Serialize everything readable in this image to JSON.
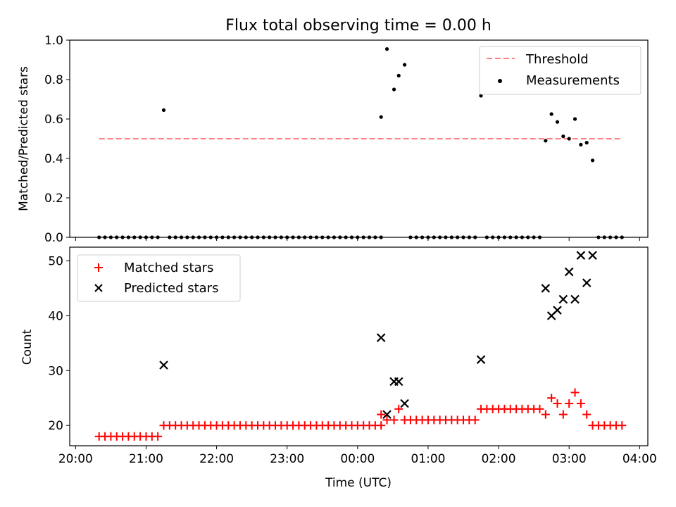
{
  "title": "Flux total observing time = 0.00 h",
  "x_axis": {
    "label": "Time (UTC)",
    "ticks": [
      "20:00",
      "21:00",
      "22:00",
      "23:00",
      "00:00",
      "01:00",
      "02:00",
      "03:00",
      "04:00"
    ]
  },
  "chart_data": [
    {
      "type": "scatter",
      "ylabel": "Matched/Predicted stars",
      "ylim": [
        0,
        1.0
      ],
      "yticks": [
        "0.0",
        "0.2",
        "0.4",
        "0.6",
        "0.8",
        "1.0"
      ],
      "xlim_minutes_from_20h": [
        -5,
        487
      ],
      "legend": {
        "placement": "top-right",
        "entries": [
          "Threshold",
          "Measurements"
        ]
      },
      "threshold": {
        "name": "Threshold",
        "value": 0.5,
        "x_start": "20:20",
        "x_end": "03:45",
        "color": "#ff8080",
        "style": "dashed"
      },
      "series": [
        {
          "name": "Measurements",
          "color": "#000000",
          "points": [
            [
              "20:20",
              0.0
            ],
            [
              "20:25",
              0.0
            ],
            [
              "20:30",
              0.0
            ],
            [
              "20:35",
              0.0
            ],
            [
              "20:40",
              0.0
            ],
            [
              "20:45",
              0.0
            ],
            [
              "20:50",
              0.0
            ],
            [
              "20:55",
              0.0
            ],
            [
              "21:00",
              0.0
            ],
            [
              "21:05",
              0.0
            ],
            [
              "21:10",
              0.0
            ],
            [
              "21:15",
              0.645
            ],
            [
              "21:20",
              0.0
            ],
            [
              "21:25",
              0.0
            ],
            [
              "21:30",
              0.0
            ],
            [
              "21:35",
              0.0
            ],
            [
              "21:40",
              0.0
            ],
            [
              "21:45",
              0.0
            ],
            [
              "21:50",
              0.0
            ],
            [
              "21:55",
              0.0
            ],
            [
              "22:00",
              0.0
            ],
            [
              "22:05",
              0.0
            ],
            [
              "22:10",
              0.0
            ],
            [
              "22:15",
              0.0
            ],
            [
              "22:20",
              0.0
            ],
            [
              "22:25",
              0.0
            ],
            [
              "22:30",
              0.0
            ],
            [
              "22:35",
              0.0
            ],
            [
              "22:40",
              0.0
            ],
            [
              "22:45",
              0.0
            ],
            [
              "22:50",
              0.0
            ],
            [
              "22:55",
              0.0
            ],
            [
              "23:00",
              0.0
            ],
            [
              "23:05",
              0.0
            ],
            [
              "23:10",
              0.0
            ],
            [
              "23:15",
              0.0
            ],
            [
              "23:20",
              0.0
            ],
            [
              "23:25",
              0.0
            ],
            [
              "23:30",
              0.0
            ],
            [
              "23:35",
              0.0
            ],
            [
              "23:40",
              0.0
            ],
            [
              "23:45",
              0.0
            ],
            [
              "23:50",
              0.0
            ],
            [
              "23:55",
              0.0
            ],
            [
              "00:00",
              0.0
            ],
            [
              "00:05",
              0.0
            ],
            [
              "00:10",
              0.0
            ],
            [
              "00:15",
              0.0
            ],
            [
              "00:20",
              0.0
            ],
            [
              "00:20",
              0.61
            ],
            [
              "00:25",
              0.955
            ],
            [
              "00:31",
              0.75
            ],
            [
              "00:35",
              0.82
            ],
            [
              "00:40",
              0.875
            ],
            [
              "00:45",
              0.0
            ],
            [
              "00:50",
              0.0
            ],
            [
              "00:55",
              0.0
            ],
            [
              "01:00",
              0.0
            ],
            [
              "01:05",
              0.0
            ],
            [
              "01:10",
              0.0
            ],
            [
              "01:15",
              0.0
            ],
            [
              "01:20",
              0.0
            ],
            [
              "01:25",
              0.0
            ],
            [
              "01:30",
              0.0
            ],
            [
              "01:35",
              0.0
            ],
            [
              "01:40",
              0.0
            ],
            [
              "01:45",
              0.718
            ],
            [
              "01:50",
              0.0
            ],
            [
              "01:55",
              0.0
            ],
            [
              "02:00",
              0.0
            ],
            [
              "02:05",
              0.0
            ],
            [
              "02:10",
              0.0
            ],
            [
              "02:15",
              0.0
            ],
            [
              "02:20",
              0.0
            ],
            [
              "02:25",
              0.0
            ],
            [
              "02:30",
              0.0
            ],
            [
              "02:35",
              0.0
            ],
            [
              "02:40",
              0.49
            ],
            [
              "02:45",
              0.625
            ],
            [
              "02:50",
              0.585
            ],
            [
              "02:55",
              0.512
            ],
            [
              "03:00",
              0.5
            ],
            [
              "03:05",
              0.6
            ],
            [
              "03:10",
              0.47
            ],
            [
              "03:15",
              0.48
            ],
            [
              "03:20",
              0.39
            ],
            [
              "03:25",
              0.0
            ],
            [
              "03:30",
              0.0
            ],
            [
              "03:35",
              0.0
            ],
            [
              "03:40",
              0.0
            ],
            [
              "03:45",
              0.0
            ]
          ]
        }
      ]
    },
    {
      "type": "scatter",
      "ylabel": "Count",
      "ylim": [
        16.3,
        52.5
      ],
      "yticks": [
        "20",
        "30",
        "40",
        "50"
      ],
      "legend": {
        "placement": "top-left",
        "entries": [
          "Matched stars",
          "Predicted stars"
        ]
      },
      "series": [
        {
          "name": "Matched stars",
          "marker": "plus",
          "color": "#ff0000",
          "points": [
            [
              "20:20",
              18
            ],
            [
              "20:25",
              18
            ],
            [
              "20:30",
              18
            ],
            [
              "20:35",
              18
            ],
            [
              "20:40",
              18
            ],
            [
              "20:45",
              18
            ],
            [
              "20:50",
              18
            ],
            [
              "20:55",
              18
            ],
            [
              "21:00",
              18
            ],
            [
              "21:05",
              18
            ],
            [
              "21:10",
              18
            ],
            [
              "21:15",
              20
            ],
            [
              "21:20",
              20
            ],
            [
              "21:25",
              20
            ],
            [
              "21:30",
              20
            ],
            [
              "21:35",
              20
            ],
            [
              "21:40",
              20
            ],
            [
              "21:45",
              20
            ],
            [
              "21:50",
              20
            ],
            [
              "21:55",
              20
            ],
            [
              "22:00",
              20
            ],
            [
              "22:05",
              20
            ],
            [
              "22:10",
              20
            ],
            [
              "22:15",
              20
            ],
            [
              "22:20",
              20
            ],
            [
              "22:25",
              20
            ],
            [
              "22:30",
              20
            ],
            [
              "22:35",
              20
            ],
            [
              "22:40",
              20
            ],
            [
              "22:45",
              20
            ],
            [
              "22:50",
              20
            ],
            [
              "22:55",
              20
            ],
            [
              "23:00",
              20
            ],
            [
              "23:05",
              20
            ],
            [
              "23:10",
              20
            ],
            [
              "23:15",
              20
            ],
            [
              "23:20",
              20
            ],
            [
              "23:25",
              20
            ],
            [
              "23:30",
              20
            ],
            [
              "23:35",
              20
            ],
            [
              "23:40",
              20
            ],
            [
              "23:45",
              20
            ],
            [
              "23:50",
              20
            ],
            [
              "23:55",
              20
            ],
            [
              "00:00",
              20
            ],
            [
              "00:05",
              20
            ],
            [
              "00:10",
              20
            ],
            [
              "00:15",
              20
            ],
            [
              "00:20",
              20
            ],
            [
              "00:20",
              22
            ],
            [
              "00:25",
              21
            ],
            [
              "00:31",
              21
            ],
            [
              "00:35",
              23
            ],
            [
              "00:40",
              21
            ],
            [
              "00:45",
              21
            ],
            [
              "00:50",
              21
            ],
            [
              "00:55",
              21
            ],
            [
              "01:00",
              21
            ],
            [
              "01:05",
              21
            ],
            [
              "01:10",
              21
            ],
            [
              "01:15",
              21
            ],
            [
              "01:20",
              21
            ],
            [
              "01:25",
              21
            ],
            [
              "01:30",
              21
            ],
            [
              "01:35",
              21
            ],
            [
              "01:40",
              21
            ],
            [
              "01:45",
              23
            ],
            [
              "01:50",
              23
            ],
            [
              "01:55",
              23
            ],
            [
              "02:00",
              23
            ],
            [
              "02:05",
              23
            ],
            [
              "02:10",
              23
            ],
            [
              "02:15",
              23
            ],
            [
              "02:20",
              23
            ],
            [
              "02:25",
              23
            ],
            [
              "02:30",
              23
            ],
            [
              "02:35",
              23
            ],
            [
              "02:40",
              22
            ],
            [
              "02:45",
              25
            ],
            [
              "02:50",
              24
            ],
            [
              "02:55",
              22
            ],
            [
              "03:00",
              24
            ],
            [
              "03:05",
              26
            ],
            [
              "03:10",
              24
            ],
            [
              "03:15",
              22
            ],
            [
              "03:20",
              20
            ],
            [
              "03:25",
              20
            ],
            [
              "03:30",
              20
            ],
            [
              "03:35",
              20
            ],
            [
              "03:40",
              20
            ],
            [
              "03:45",
              20
            ]
          ]
        },
        {
          "name": "Predicted stars",
          "marker": "x",
          "color": "#000000",
          "points": [
            [
              "21:15",
              31
            ],
            [
              "00:20",
              36
            ],
            [
              "00:25",
              22
            ],
            [
              "00:31",
              28
            ],
            [
              "00:35",
              28
            ],
            [
              "00:40",
              24
            ],
            [
              "01:45",
              32
            ],
            [
              "02:40",
              45
            ],
            [
              "02:45",
              40
            ],
            [
              "02:50",
              41
            ],
            [
              "02:55",
              43
            ],
            [
              "03:00",
              48
            ],
            [
              "03:05",
              43
            ],
            [
              "03:10",
              51
            ],
            [
              "03:15",
              46
            ],
            [
              "03:20",
              51
            ]
          ]
        }
      ]
    }
  ]
}
